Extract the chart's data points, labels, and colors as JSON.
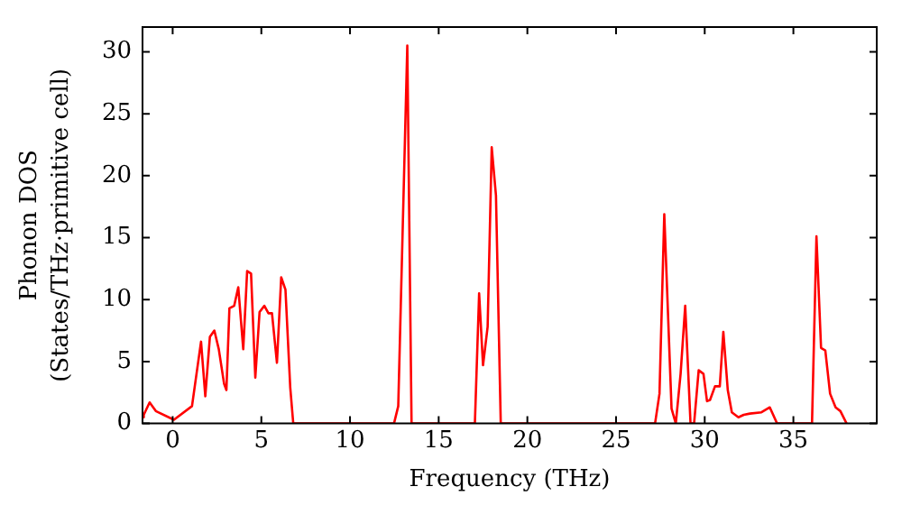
{
  "chart_data": {
    "type": "line",
    "xlabel": "Frequency (THz)",
    "ylabel": "Phonon DOS\n(States/THz·primitive cell)",
    "xlim": [
      -1.7,
      39.7
    ],
    "ylim": [
      0,
      32
    ],
    "xticks": [
      0,
      5,
      10,
      15,
      20,
      25,
      30,
      35
    ],
    "yticks": [
      0,
      5,
      10,
      15,
      20,
      25,
      30
    ],
    "grid": false,
    "legend": false,
    "marker": "none",
    "line_style": "solid",
    "series": [
      {
        "color": "#ff0000",
        "x": [
          -1.7,
          -1.63,
          -1.3,
          -0.95,
          0.07,
          1.09,
          1.6,
          1.84,
          2.1,
          2.35,
          2.6,
          2.9,
          3.03,
          3.2,
          3.47,
          3.7,
          3.98,
          4.2,
          4.42,
          4.66,
          4.9,
          5.17,
          5.4,
          5.6,
          5.88,
          6.12,
          6.36,
          6.63,
          6.8,
          12.48,
          12.72,
          13.23,
          13.47,
          17.04,
          17.28,
          17.5,
          17.76,
          17.99,
          18.23,
          18.5,
          27.2,
          27.45,
          27.72,
          28.13,
          28.37,
          28.64,
          28.9,
          29.2,
          29.4,
          29.66,
          29.93,
          30.13,
          30.3,
          30.58,
          30.85,
          31.05,
          31.3,
          31.53,
          31.9,
          32.2,
          32.55,
          33.2,
          33.67,
          34.08,
          36.05,
          36.3,
          36.56,
          36.8,
          37.07,
          37.38,
          37.65,
          38.0
        ],
        "values": [
          0.5,
          0.7,
          1.7,
          1.0,
          0.3,
          1.4,
          6.6,
          2.2,
          7.0,
          7.5,
          6.0,
          3.2,
          2.7,
          9.3,
          9.5,
          11.0,
          6.0,
          12.3,
          12.1,
          3.7,
          9.0,
          9.5,
          8.9,
          8.9,
          4.9,
          11.8,
          10.8,
          2.9,
          0,
          0,
          1.4,
          30.5,
          0,
          0,
          10.5,
          4.7,
          7.8,
          22.3,
          18.4,
          0,
          0,
          2.4,
          16.9,
          1.2,
          0,
          4.0,
          9.5,
          0,
          0,
          4.3,
          4.0,
          1.8,
          1.9,
          3.0,
          3.0,
          7.4,
          2.7,
          0.9,
          0.5,
          0.7,
          0.8,
          0.9,
          1.3,
          0,
          0,
          15.1,
          6.1,
          5.9,
          2.4,
          1.3,
          1.0,
          0
        ]
      }
    ]
  }
}
